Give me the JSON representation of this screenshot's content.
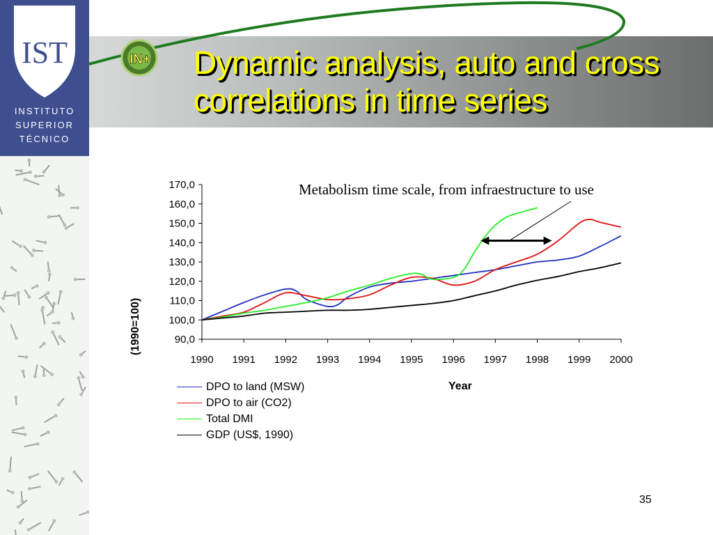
{
  "slide": {
    "title_line1": "Dynamic analysis, auto and cross",
    "title_line2": "correlations in time series",
    "page_number": "35",
    "annotation": "Metabolism time scale, from infraestructure to use"
  },
  "institution": {
    "logo_mark": "IST",
    "line1": "INSTITUTO",
    "line2": "SUPERIOR",
    "line3": "TÉCNICO"
  },
  "in_logo": {
    "text": "IN+"
  },
  "colors": {
    "title": "#ffff00",
    "logo_blue": "#3f4e8f",
    "swoosh_green": "#1f7a1f"
  },
  "chart_data": {
    "type": "line",
    "title": "",
    "xlabel": "Year",
    "ylabel": "(1990=100)",
    "x_ticks": [
      "1990",
      "1991",
      "1992",
      "1993",
      "1994",
      "1995",
      "1996",
      "1997",
      "1998",
      "1999",
      "2000"
    ],
    "y_ticks": [
      "90,0",
      "100,0",
      "110,0",
      "120,0",
      "130,0",
      "140,0",
      "150,0",
      "160,0",
      "170,0"
    ],
    "xlim": [
      1990,
      2000
    ],
    "ylim": [
      90,
      170
    ],
    "grid": false,
    "legend_position": "bottom-left",
    "series": [
      {
        "name": "DPO to land (MSW)",
        "color": "#1f2fbf",
        "x": [
          1990,
          1990.5,
          1991,
          1991.5,
          1992,
          1992.25,
          1992.5,
          1993,
          1993.25,
          1993.5,
          1994,
          1994.5,
          1995,
          1995.5,
          1996,
          1996.5,
          1997,
          1997.5,
          1998,
          1998.5,
          1999,
          1999.5,
          2000
        ],
        "y": [
          100,
          104.5,
          109,
          113,
          116,
          115,
          110.5,
          107,
          108,
          112,
          117,
          119,
          120,
          121.5,
          123,
          124.5,
          126,
          128,
          130,
          131,
          133,
          138,
          143.5
        ]
      },
      {
        "name": "DPO to air (CO2)",
        "color": "#e01010",
        "x": [
          1990,
          1990.5,
          1991,
          1991.5,
          1992,
          1992.5,
          1993,
          1993.5,
          1994,
          1994.5,
          1995,
          1995.5,
          1996,
          1996.5,
          1997,
          1997.5,
          1998,
          1998.5,
          1999,
          1999.25,
          1999.5,
          2000
        ],
        "y": [
          100,
          102,
          104,
          109,
          114,
          112.5,
          110.5,
          111,
          113,
          118,
          122,
          121.5,
          118,
          120,
          126,
          130,
          134,
          141,
          150,
          152,
          150.5,
          148
        ]
      },
      {
        "name": "Total DMI",
        "color": "#22ee22",
        "x": [
          1990,
          1990.5,
          1991,
          1991.5,
          1992,
          1992.5,
          1993,
          1993.5,
          1994,
          1994.5,
          1995,
          1995.25,
          1995.5,
          1996,
          1996.25,
          1996.5,
          1996.75,
          1997,
          1997.25,
          1997.5,
          1998
        ],
        "y": [
          100,
          101.5,
          103.5,
          105,
          107,
          109,
          111.5,
          115,
          118,
          121.5,
          124,
          123.5,
          121,
          122,
          126,
          135,
          143,
          149,
          153,
          155,
          158
        ]
      },
      {
        "name": "GDP (US$, 1990)",
        "color": "#000000",
        "x": [
          1990,
          1990.5,
          1991,
          1991.5,
          1992,
          1992.5,
          1993,
          1993.5,
          1994,
          1994.5,
          1995,
          1995.5,
          1996,
          1996.5,
          1997,
          1997.5,
          1998,
          1998.5,
          1999,
          1999.5,
          2000
        ],
        "y": [
          100,
          101,
          102,
          103.5,
          104,
          104.5,
          105,
          105,
          105.5,
          106.5,
          107.5,
          108.5,
          110,
          112.5,
          115,
          118,
          120.5,
          122.5,
          125,
          127,
          129.5
        ]
      }
    ],
    "arrow": {
      "from_x": 1996.65,
      "to_x": 1998.35,
      "y": 141
    }
  }
}
